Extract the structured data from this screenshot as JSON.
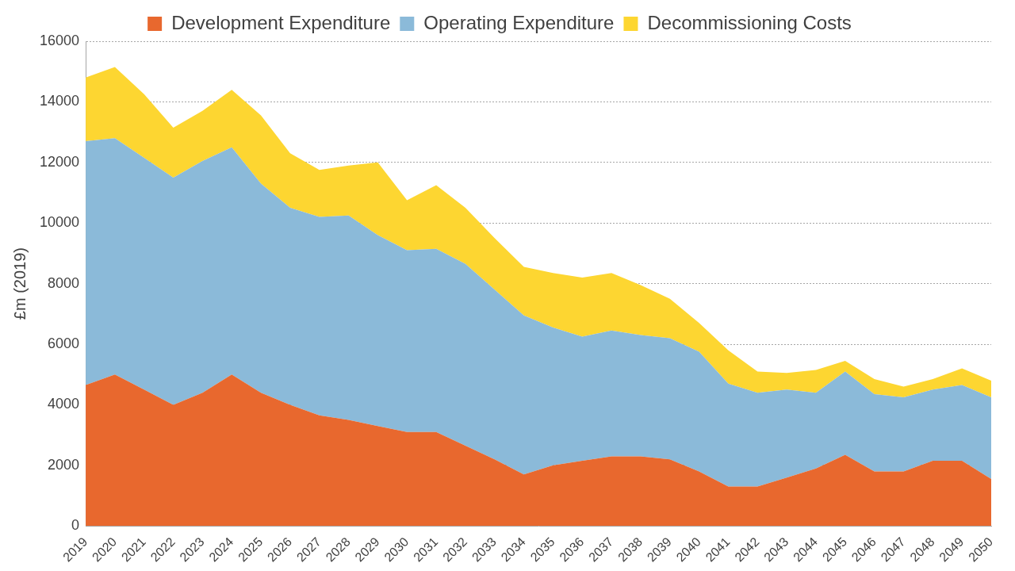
{
  "chart_data": {
    "type": "area",
    "y_label": "£m (2019)",
    "categories": [
      "2019",
      "2020",
      "2021",
      "2022",
      "2023",
      "2024",
      "2025",
      "2026",
      "2027",
      "2028",
      "2029",
      "2030",
      "2031",
      "2032",
      "2033",
      "2034",
      "2035",
      "2036",
      "2037",
      "2038",
      "2039",
      "2040",
      "2041",
      "2042",
      "2043",
      "2044",
      "2045",
      "2046",
      "2047",
      "2048",
      "2049",
      "2050"
    ],
    "series": [
      {
        "name": "Development Expenditure",
        "color": "#e8682e",
        "values": [
          4650,
          5000,
          4500,
          4000,
          4400,
          5000,
          4400,
          4000,
          3650,
          3500,
          3300,
          3100,
          3100,
          2650,
          2200,
          1700,
          2000,
          2150,
          2300,
          2300,
          2200,
          1800,
          1300,
          1300,
          1600,
          1900,
          2350,
          1800,
          1800,
          2150,
          2150,
          1550
        ]
      },
      {
        "name": "Operating Expenditure",
        "color": "#8bbad9",
        "values": [
          8050,
          7800,
          7650,
          7500,
          7650,
          7500,
          6900,
          6500,
          6550,
          6750,
          6300,
          6000,
          6050,
          6000,
          5600,
          5250,
          4550,
          4100,
          4150,
          4000,
          4000,
          3950,
          3400,
          3100,
          2900,
          2500,
          2750,
          2550,
          2450,
          2350,
          2500,
          2700
        ]
      },
      {
        "name": "Decommissioning Costs",
        "color": "#fdd631",
        "values": [
          2100,
          2350,
          2100,
          1650,
          1650,
          1900,
          2250,
          1800,
          1550,
          1650,
          2400,
          1650,
          2100,
          1850,
          1700,
          1600,
          1800,
          1950,
          1900,
          1650,
          1300,
          950,
          1100,
          700,
          550,
          750,
          350,
          500,
          350,
          350,
          550,
          550
        ]
      }
    ],
    "ylim": [
      0,
      16000
    ],
    "yticks": [
      0,
      2000,
      4000,
      6000,
      8000,
      10000,
      12000,
      14000,
      16000
    ],
    "stacked": true,
    "grid": true,
    "legend": "top"
  }
}
